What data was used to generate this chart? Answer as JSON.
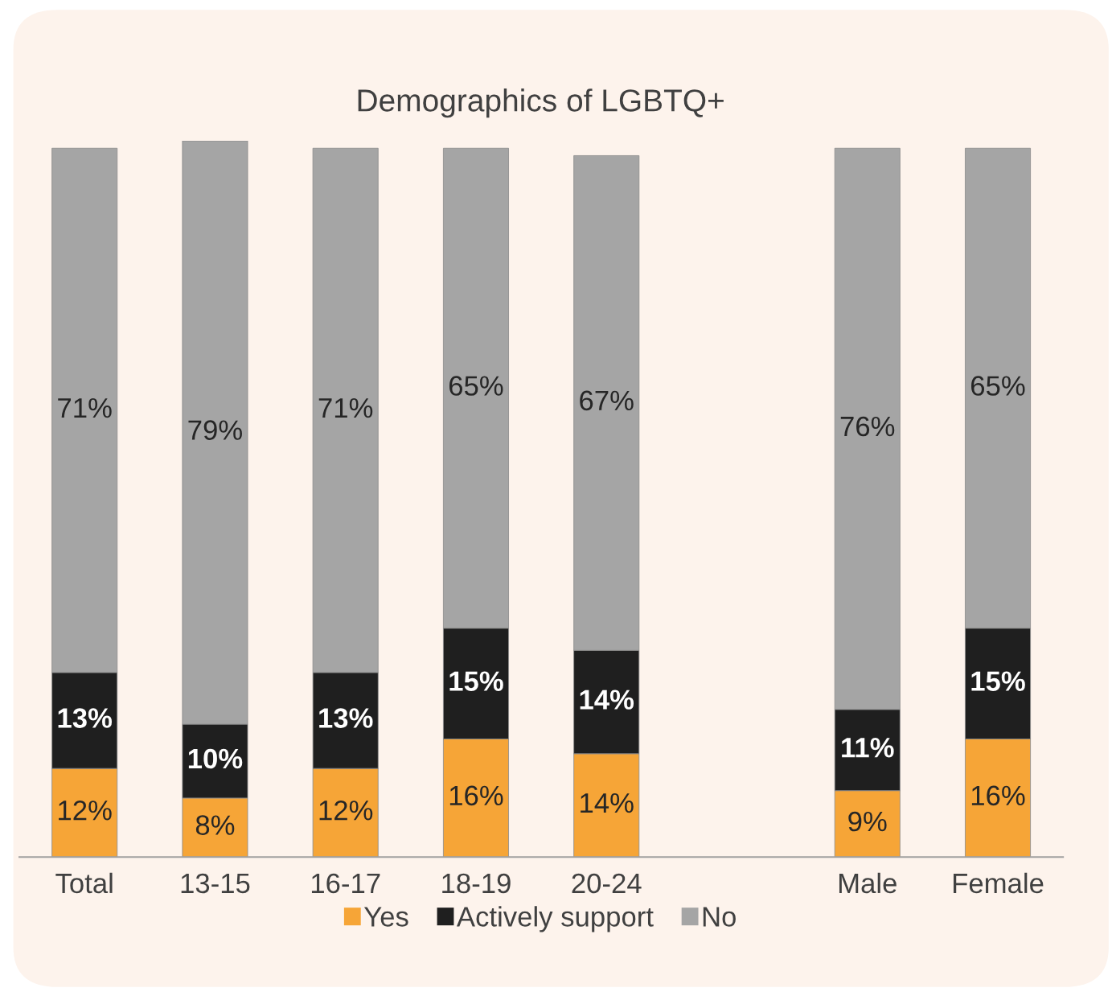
{
  "chart_data": {
    "type": "bar",
    "title": "Demographics of LGBTQ+",
    "stacked": true,
    "legend": "bottom",
    "grid": false,
    "categories": [
      "Total",
      "13-15",
      "16-17",
      "18-19",
      "20-24",
      null,
      "Male",
      "Female"
    ],
    "series": [
      {
        "name": "Yes",
        "color": "#f6a537",
        "values": [
          12,
          8,
          12,
          16,
          14,
          null,
          9,
          16
        ],
        "value_labels": [
          "12%",
          "8%",
          "12%",
          "16%",
          "14%",
          null,
          "9%",
          "16%"
        ]
      },
      {
        "name": "Actively support",
        "color": "#1f1f1f",
        "values": [
          13,
          10,
          13,
          15,
          14,
          null,
          11,
          15
        ],
        "value_labels": [
          "13%",
          "10%",
          "13%",
          "15%",
          "14%",
          null,
          "11%",
          "15%"
        ]
      },
      {
        "name": "No",
        "color": "#a5a5a5",
        "values": [
          71,
          79,
          71,
          65,
          67,
          null,
          76,
          65
        ],
        "value_labels": [
          "71%",
          "79%",
          "71%",
          "65%",
          "67%",
          null,
          "76%",
          "65%"
        ]
      }
    ]
  }
}
